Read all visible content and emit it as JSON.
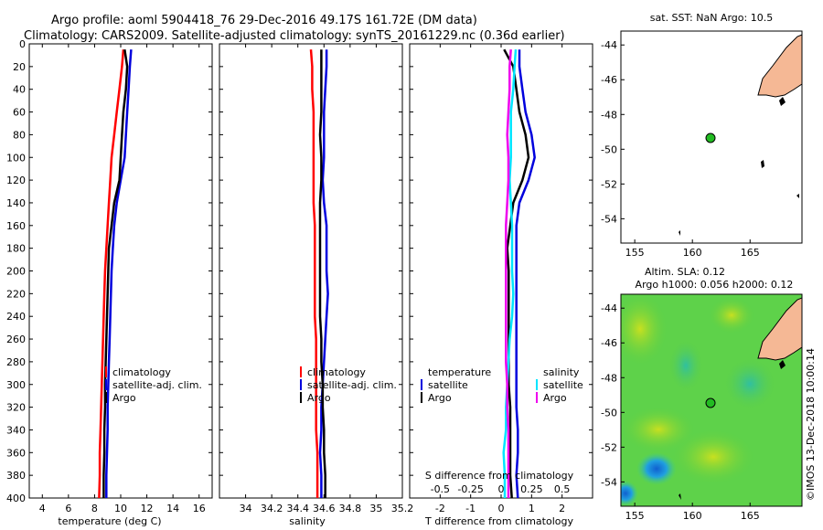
{
  "header": {
    "title_line1": "Argo profile: aoml 5904418_76 29-Dec-2016 49.17S 161.72E (DM data)",
    "title_line2": "Climatology: CARS2009. Satellite-adjusted climatology: synTS_20161229.nc (0.36d earlier)"
  },
  "colors": {
    "climatology": "#ff0000",
    "satellite": "#0000dd",
    "argo": "#000000",
    "sal_satellite": "#00e5ff",
    "sal_argo": "#ee00ee",
    "land": "#f5b895"
  },
  "chart_data": [
    {
      "type": "line",
      "id": "temperature",
      "xlabel": "temperature (deg C)",
      "ylabel": "",
      "xlim": [
        3,
        17
      ],
      "ylim": [
        400,
        0
      ],
      "xticks": [
        4,
        6,
        8,
        10,
        12,
        14,
        16
      ],
      "yticks": [
        0,
        20,
        40,
        60,
        80,
        100,
        120,
        140,
        160,
        180,
        200,
        220,
        240,
        260,
        280,
        300,
        320,
        340,
        360,
        380,
        400
      ],
      "legend": [
        "climatology",
        "satellite-adj. clim.",
        "Argo"
      ],
      "series": [
        {
          "name": "climatology",
          "color": "#ff0000",
          "points": [
            [
              10.2,
              5
            ],
            [
              10.1,
              20
            ],
            [
              9.9,
              40
            ],
            [
              9.7,
              60
            ],
            [
              9.5,
              80
            ],
            [
              9.3,
              100
            ],
            [
              9.2,
              120
            ],
            [
              9.1,
              140
            ],
            [
              9.0,
              160
            ],
            [
              8.9,
              180
            ],
            [
              8.8,
              200
            ],
            [
              8.75,
              220
            ],
            [
              8.7,
              240
            ],
            [
              8.65,
              260
            ],
            [
              8.6,
              280
            ],
            [
              8.55,
              300
            ],
            [
              8.5,
              320
            ],
            [
              8.45,
              340
            ],
            [
              8.4,
              360
            ],
            [
              8.4,
              380
            ],
            [
              8.35,
              400
            ]
          ]
        },
        {
          "name": "satellite-adj. clim.",
          "color": "#0000dd",
          "points": [
            [
              10.8,
              5
            ],
            [
              10.7,
              20
            ],
            [
              10.6,
              40
            ],
            [
              10.5,
              60
            ],
            [
              10.4,
              80
            ],
            [
              10.3,
              100
            ],
            [
              10.0,
              120
            ],
            [
              9.7,
              140
            ],
            [
              9.5,
              160
            ],
            [
              9.4,
              180
            ],
            [
              9.3,
              200
            ],
            [
              9.25,
              220
            ],
            [
              9.2,
              240
            ],
            [
              9.15,
              260
            ],
            [
              9.1,
              280
            ],
            [
              9.05,
              300
            ],
            [
              9.0,
              320
            ],
            [
              9.0,
              340
            ],
            [
              8.95,
              360
            ],
            [
              8.9,
              380
            ],
            [
              8.9,
              400
            ]
          ]
        },
        {
          "name": "Argo",
          "color": "#000000",
          "points": [
            [
              10.3,
              5
            ],
            [
              10.5,
              20
            ],
            [
              10.4,
              40
            ],
            [
              10.2,
              60
            ],
            [
              10.1,
              80
            ],
            [
              10.0,
              100
            ],
            [
              9.9,
              120
            ],
            [
              9.5,
              140
            ],
            [
              9.3,
              160
            ],
            [
              9.1,
              180
            ],
            [
              9.05,
              200
            ],
            [
              9.0,
              220
            ],
            [
              8.95,
              240
            ],
            [
              8.9,
              260
            ],
            [
              8.85,
              280
            ],
            [
              8.8,
              300
            ],
            [
              8.8,
              320
            ],
            [
              8.75,
              340
            ],
            [
              8.75,
              360
            ],
            [
              8.7,
              380
            ],
            [
              8.7,
              400
            ]
          ]
        }
      ]
    },
    {
      "type": "line",
      "id": "salinity",
      "xlabel": "salinity",
      "ylabel": "",
      "xlim": [
        33.8,
        35.2
      ],
      "ylim": [
        400,
        0
      ],
      "xticks": [
        34,
        34.2,
        34.4,
        34.6,
        34.8,
        35,
        35.2
      ],
      "xticklabels": [
        "34",
        "34.2",
        "34.4",
        "34.6",
        "34.8",
        "35",
        "35.2"
      ],
      "legend": [
        "climatology",
        "satellite-adj. clim.",
        "Argo"
      ],
      "series": [
        {
          "name": "climatology",
          "color": "#ff0000",
          "points": [
            [
              34.5,
              5
            ],
            [
              34.51,
              20
            ],
            [
              34.51,
              40
            ],
            [
              34.52,
              60
            ],
            [
              34.52,
              80
            ],
            [
              34.52,
              100
            ],
            [
              34.52,
              120
            ],
            [
              34.52,
              140
            ],
            [
              34.53,
              160
            ],
            [
              34.53,
              180
            ],
            [
              34.53,
              200
            ],
            [
              34.53,
              220
            ],
            [
              34.53,
              240
            ],
            [
              34.54,
              260
            ],
            [
              34.54,
              280
            ],
            [
              34.54,
              300
            ],
            [
              34.54,
              320
            ],
            [
              34.54,
              340
            ],
            [
              34.55,
              360
            ],
            [
              34.55,
              380
            ],
            [
              34.55,
              400
            ]
          ]
        },
        {
          "name": "satellite-adj. clim.",
          "color": "#0000dd",
          "points": [
            [
              34.62,
              5
            ],
            [
              34.62,
              20
            ],
            [
              34.61,
              40
            ],
            [
              34.6,
              60
            ],
            [
              34.6,
              80
            ],
            [
              34.6,
              100
            ],
            [
              34.59,
              120
            ],
            [
              34.6,
              140
            ],
            [
              34.62,
              160
            ],
            [
              34.62,
              180
            ],
            [
              34.62,
              200
            ],
            [
              34.63,
              220
            ],
            [
              34.62,
              240
            ],
            [
              34.61,
              260
            ],
            [
              34.6,
              280
            ],
            [
              34.59,
              300
            ],
            [
              34.58,
              320
            ],
            [
              34.58,
              340
            ],
            [
              34.57,
              360
            ],
            [
              34.58,
              380
            ],
            [
              34.58,
              400
            ]
          ]
        },
        {
          "name": "Argo",
          "color": "#000000",
          "points": [
            [
              34.58,
              5
            ],
            [
              34.58,
              20
            ],
            [
              34.58,
              40
            ],
            [
              34.58,
              60
            ],
            [
              34.57,
              80
            ],
            [
              34.58,
              100
            ],
            [
              34.58,
              120
            ],
            [
              34.57,
              140
            ],
            [
              34.57,
              160
            ],
            [
              34.57,
              180
            ],
            [
              34.57,
              200
            ],
            [
              34.57,
              220
            ],
            [
              34.57,
              240
            ],
            [
              34.58,
              260
            ],
            [
              34.58,
              280
            ],
            [
              34.59,
              300
            ],
            [
              34.59,
              320
            ],
            [
              34.6,
              340
            ],
            [
              34.6,
              360
            ],
            [
              34.61,
              380
            ],
            [
              34.61,
              400
            ]
          ]
        }
      ]
    },
    {
      "type": "line",
      "id": "difference",
      "xlabel": "T difference from climatology",
      "top_axis_label": "S difference from climatology",
      "xlim": [
        -3,
        3
      ],
      "ylim": [
        400,
        0
      ],
      "xticks": [
        -2,
        -1,
        0,
        1,
        2
      ],
      "s_xlim": [
        -0.75,
        0.75
      ],
      "s_xticks": [
        -0.5,
        -0.25,
        0,
        0.25,
        0.5
      ],
      "s_xticklabels": [
        "-0.5",
        "-0.25",
        "0",
        "0.25",
        "0.5"
      ],
      "legend_temperature_title": "temperature",
      "legend_salinity_title": "salinity",
      "legend_temperature": [
        "satellite",
        "Argo"
      ],
      "legend_salinity": [
        "satellite",
        "Argo"
      ],
      "series": [
        {
          "name": "T satellite",
          "color": "#0000dd",
          "points": [
            [
              0.6,
              5
            ],
            [
              0.6,
              20
            ],
            [
              0.7,
              40
            ],
            [
              0.8,
              60
            ],
            [
              1.0,
              80
            ],
            [
              1.1,
              100
            ],
            [
              0.9,
              120
            ],
            [
              0.6,
              140
            ],
            [
              0.5,
              160
            ],
            [
              0.5,
              180
            ],
            [
              0.5,
              200
            ],
            [
              0.5,
              220
            ],
            [
              0.5,
              240
            ],
            [
              0.5,
              260
            ],
            [
              0.5,
              280
            ],
            [
              0.5,
              300
            ],
            [
              0.5,
              320
            ],
            [
              0.55,
              340
            ],
            [
              0.55,
              360
            ],
            [
              0.5,
              380
            ],
            [
              0.55,
              400
            ]
          ]
        },
        {
          "name": "T Argo",
          "color": "#000000",
          "points": [
            [
              0.1,
              5
            ],
            [
              0.4,
              20
            ],
            [
              0.5,
              40
            ],
            [
              0.6,
              60
            ],
            [
              0.8,
              80
            ],
            [
              0.9,
              100
            ],
            [
              0.7,
              120
            ],
            [
              0.4,
              140
            ],
            [
              0.3,
              160
            ],
            [
              0.2,
              180
            ],
            [
              0.25,
              200
            ],
            [
              0.25,
              220
            ],
            [
              0.25,
              240
            ],
            [
              0.25,
              260
            ],
            [
              0.25,
              280
            ],
            [
              0.25,
              300
            ],
            [
              0.3,
              320
            ],
            [
              0.3,
              340
            ],
            [
              0.3,
              360
            ],
            [
              0.3,
              380
            ],
            [
              0.35,
              400
            ]
          ]
        },
        {
          "name": "S satellite",
          "color": "#00e5ff",
          "scale": "s",
          "points": [
            [
              0.12,
              5
            ],
            [
              0.11,
              20
            ],
            [
              0.1,
              40
            ],
            [
              0.08,
              60
            ],
            [
              0.08,
              80
            ],
            [
              0.08,
              100
            ],
            [
              0.07,
              120
            ],
            [
              0.08,
              140
            ],
            [
              0.09,
              160
            ],
            [
              0.09,
              180
            ],
            [
              0.09,
              200
            ],
            [
              0.1,
              220
            ],
            [
              0.09,
              240
            ],
            [
              0.07,
              260
            ],
            [
              0.06,
              280
            ],
            [
              0.05,
              300
            ],
            [
              0.04,
              320
            ],
            [
              0.04,
              340
            ],
            [
              0.02,
              360
            ],
            [
              0.03,
              380
            ],
            [
              0.03,
              400
            ]
          ]
        },
        {
          "name": "S Argo",
          "color": "#ee00ee",
          "scale": "s",
          "points": [
            [
              0.08,
              5
            ],
            [
              0.07,
              20
            ],
            [
              0.07,
              40
            ],
            [
              0.06,
              60
            ],
            [
              0.05,
              80
            ],
            [
              0.06,
              100
            ],
            [
              0.06,
              120
            ],
            [
              0.05,
              140
            ],
            [
              0.04,
              160
            ],
            [
              0.04,
              180
            ],
            [
              0.04,
              200
            ],
            [
              0.04,
              220
            ],
            [
              0.04,
              240
            ],
            [
              0.04,
              260
            ],
            [
              0.04,
              280
            ],
            [
              0.05,
              300
            ],
            [
              0.05,
              320
            ],
            [
              0.06,
              340
            ],
            [
              0.06,
              360
            ],
            [
              0.06,
              380
            ],
            [
              0.06,
              400
            ]
          ]
        }
      ]
    }
  ],
  "map_top": {
    "title": "sat. SST: NaN Argo: 10.5",
    "xticks": [
      "155",
      "160",
      "165"
    ],
    "yticks": [
      "-44",
      "-46",
      "-48",
      "-50",
      "-52",
      "-54"
    ],
    "argo_lon": 161.72,
    "argo_lat": -49.17
  },
  "map_bottom": {
    "title_line1": "Altim. SLA: 0.12",
    "title_line2": "Argo h1000: 0.056 h2000: 0.12",
    "xticks": [
      "155",
      "160",
      "165"
    ],
    "yticks": [
      "-44",
      "-46",
      "-48",
      "-50",
      "-52",
      "-54"
    ],
    "credit": "©IMOS 13-Dec-2018 10:00:14"
  }
}
